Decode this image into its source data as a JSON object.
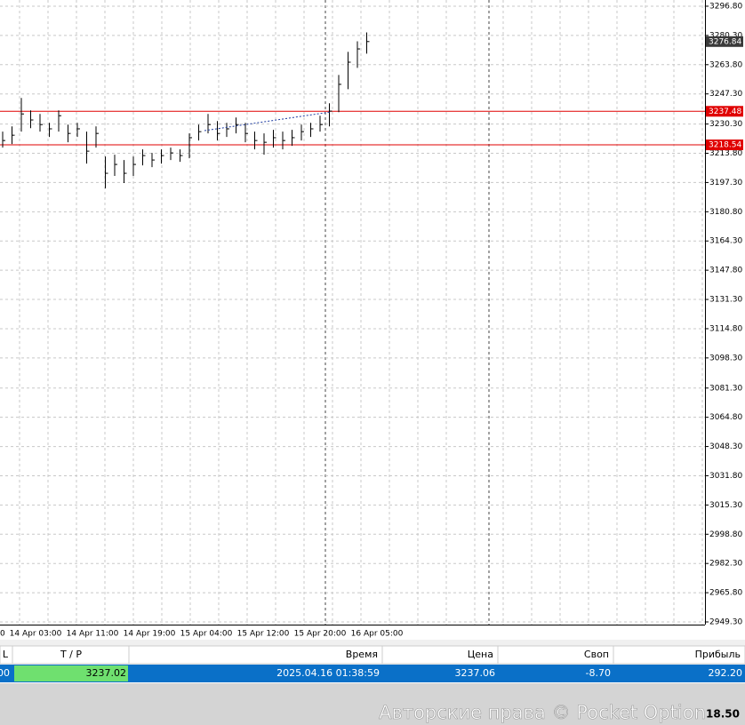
{
  "chart_data": {
    "type": "ohlc",
    "bar_color": "#000000",
    "ylim": [
      2947.8,
      3300.3
    ],
    "yticks": [
      {
        "value": 3296.8,
        "label": "3296.80"
      },
      {
        "value": 3280.3,
        "label": "3280.30"
      },
      {
        "value": 3263.8,
        "label": "3263.80"
      },
      {
        "value": 3247.3,
        "label": "3247.30"
      },
      {
        "value": 3230.3,
        "label": "3230.30"
      },
      {
        "value": 3213.8,
        "label": "3213.80"
      },
      {
        "value": 3197.3,
        "label": "3197.30"
      },
      {
        "value": 3180.8,
        "label": "3180.80"
      },
      {
        "value": 3164.3,
        "label": "3164.30"
      },
      {
        "value": 3147.8,
        "label": "3147.80"
      },
      {
        "value": 3131.3,
        "label": "3131.30"
      },
      {
        "value": 3114.8,
        "label": "3114.80"
      },
      {
        "value": 3098.3,
        "label": "3098.30"
      },
      {
        "value": 3081.3,
        "label": "3081.30"
      },
      {
        "value": 3064.8,
        "label": "3064.80"
      },
      {
        "value": 3048.3,
        "label": "3048.30"
      },
      {
        "value": 3031.8,
        "label": "3031.80"
      },
      {
        "value": 3015.3,
        "label": "3015.30"
      },
      {
        "value": 2998.8,
        "label": "2998.80"
      },
      {
        "value": 2982.3,
        "label": "2982.30"
      },
      {
        "value": 2965.8,
        "label": "2965.80"
      },
      {
        "value": 2949.3,
        "label": "2949.30"
      }
    ],
    "x_labels": [
      "0",
      "14 Apr 03:00",
      "14 Apr 11:00",
      "14 Apr 19:00",
      "15 Apr 04:00",
      "15 Apr 12:00",
      "15 Apr 20:00",
      "16 Apr 05:00"
    ],
    "high": [
      3226,
      3229,
      3245,
      3238,
      3236,
      3231,
      3238,
      3230,
      3231,
      3226,
      3229,
      3212,
      3213,
      3210,
      3212,
      3216,
      3214,
      3216,
      3217,
      3216,
      3225,
      3230,
      3236,
      3232,
      3231,
      3234,
      3231,
      3226,
      3225,
      3227,
      3226,
      3227,
      3230,
      3231,
      3235,
      3242,
      3258,
      3271,
      3277,
      3282
    ],
    "low": [
      3217,
      3219,
      3226,
      3228,
      3226,
      3223,
      3226,
      3220,
      3223,
      3208,
      3217,
      3194,
      3201,
      3197,
      3201,
      3207,
      3206,
      3208,
      3210,
      3209,
      3211,
      3221,
      3225,
      3221,
      3223,
      3225,
      3220,
      3216,
      3213,
      3217,
      3216,
      3218,
      3221,
      3223,
      3226,
      3229,
      3237,
      3250,
      3262,
      3270
    ],
    "close": [
      3221,
      3224,
      3236,
      3232.6,
      3230,
      3227.6,
      3235,
      3225,
      3227.6,
      3215,
      3225,
      3202.5,
      3207.5,
      3202.5,
      3207.5,
      3212.5,
      3210,
      3212.5,
      3214,
      3212.5,
      3222.6,
      3226,
      3230,
      3225,
      3227.6,
      3230,
      3225,
      3221,
      3220,
      3222.6,
      3221,
      3222.6,
      3226,
      3227.6,
      3230,
      3237.6,
      3252.7,
      3265.2,
      3272.7,
      3276.84
    ],
    "levels": [
      {
        "value": 3237.48,
        "color": "#e00000"
      },
      {
        "value": 3218.54,
        "color": "#e00000"
      }
    ],
    "current_price": 3276.84
  },
  "table": {
    "header": [
      "L",
      "T / P",
      "Время",
      "Цена",
      "Своп",
      "Прибыль"
    ],
    "rows": [
      [
        "00",
        "3237.02",
        "2025.04.16 01:38:59",
        "3237.06",
        "-8.70",
        "292.20"
      ]
    ]
  },
  "footer": {
    "watermark": "Авторские права © Pocket Option",
    "value": "18.50"
  }
}
